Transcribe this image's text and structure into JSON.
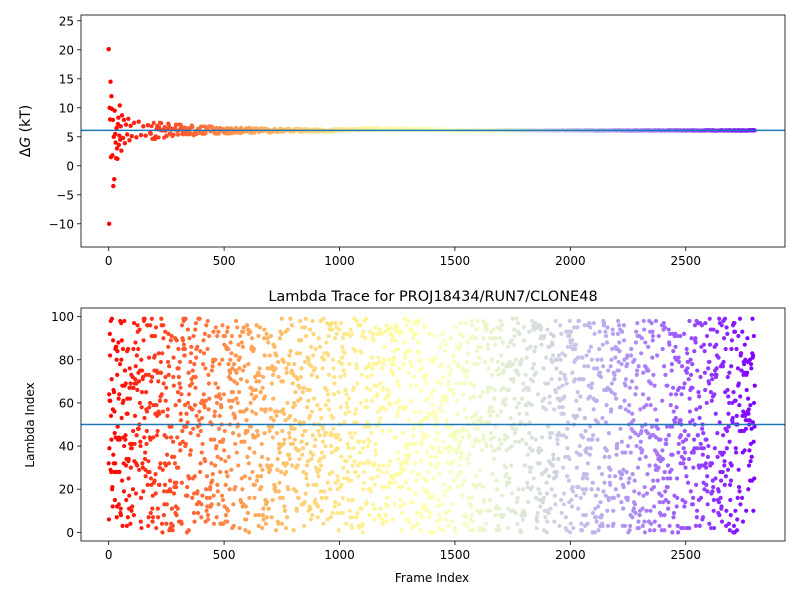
{
  "chart_data": [
    {
      "type": "scatter",
      "title": "",
      "ylabel_prefix": "Δ",
      "ylabel_var": "G",
      "ylabel_unit": " (kT)",
      "xlabel": "",
      "xlim": [
        -120,
        2930
      ],
      "ylim": [
        -14,
        26
      ],
      "xticks": [
        0,
        500,
        1000,
        1500,
        2000,
        2500
      ],
      "yticks": [
        -10,
        -5,
        0,
        5,
        10,
        15,
        20,
        25
      ],
      "ytick_labels": [
        "−10",
        "−5",
        "0",
        "5",
        "10",
        "15",
        "20",
        "25"
      ],
      "hline": 6.1,
      "hline_color": "#1f77b4",
      "color_map": "rainbow-reversed-by-frame",
      "n_frames": 2800,
      "estimate_series_description": "running free energy estimate per frame, converging to 6.1 kT",
      "early_points": [
        {
          "x": 0,
          "y": 20.1
        },
        {
          "x": 2,
          "y": -10.0
        },
        {
          "x": 4,
          "y": 10.0
        },
        {
          "x": 6,
          "y": 8.0
        },
        {
          "x": 8,
          "y": 14.5
        },
        {
          "x": 10,
          "y": 1.5
        },
        {
          "x": 12,
          "y": 12.0
        },
        {
          "x": 14,
          "y": 9.8
        },
        {
          "x": 16,
          "y": 1.8
        },
        {
          "x": 18,
          "y": 7.9
        },
        {
          "x": 20,
          "y": -3.5
        },
        {
          "x": 22,
          "y": 5.0
        },
        {
          "x": 24,
          "y": -2.3
        },
        {
          "x": 26,
          "y": 9.5
        },
        {
          "x": 28,
          "y": 5.5
        },
        {
          "x": 30,
          "y": 4.0
        },
        {
          "x": 32,
          "y": 1.3
        },
        {
          "x": 34,
          "y": 6.5
        },
        {
          "x": 36,
          "y": 3.0
        },
        {
          "x": 38,
          "y": 1.2
        },
        {
          "x": 40,
          "y": 7.2
        },
        {
          "x": 42,
          "y": 8.3
        },
        {
          "x": 44,
          "y": 3.6
        },
        {
          "x": 46,
          "y": 5.2
        },
        {
          "x": 48,
          "y": 10.4
        },
        {
          "x": 50,
          "y": 4.5
        },
        {
          "x": 52,
          "y": 6.8
        },
        {
          "x": 55,
          "y": 2.6
        },
        {
          "x": 58,
          "y": 8.7
        },
        {
          "x": 62,
          "y": 4.8
        },
        {
          "x": 66,
          "y": 7.9
        },
        {
          "x": 70,
          "y": 3.9
        },
        {
          "x": 75,
          "y": 7.1
        },
        {
          "x": 80,
          "y": 5.4
        },
        {
          "x": 85,
          "y": 8.1
        },
        {
          "x": 90,
          "y": 4.4
        },
        {
          "x": 95,
          "y": 6.9
        },
        {
          "x": 100,
          "y": 5.1
        },
        {
          "x": 110,
          "y": 7.4
        },
        {
          "x": 120,
          "y": 4.9
        },
        {
          "x": 130,
          "y": 7.6
        },
        {
          "x": 140,
          "y": 5.3
        },
        {
          "x": 150,
          "y": 6.8
        },
        {
          "x": 160,
          "y": 5.2
        },
        {
          "x": 170,
          "y": 7.0
        },
        {
          "x": 180,
          "y": 5.6
        }
      ]
    },
    {
      "type": "scatter",
      "title": "Lambda Trace for PROJ18434/RUN7/CLONE48",
      "xlabel": "Frame Index",
      "ylabel": "Lambda Index",
      "xlim": [
        -120,
        2930
      ],
      "ylim": [
        -4,
        104
      ],
      "xticks": [
        0,
        500,
        1000,
        1500,
        2000,
        2500
      ],
      "yticks": [
        0,
        20,
        40,
        60,
        80,
        100
      ],
      "hline": 50,
      "hline_color": "#1f77b4",
      "color_map": "rainbow-reversed-by-frame",
      "n_frames": 2800,
      "lambda_range": [
        0,
        99
      ],
      "series_description": "one lambda index (0–99) sampled per frame, scattered uniformly"
    }
  ]
}
